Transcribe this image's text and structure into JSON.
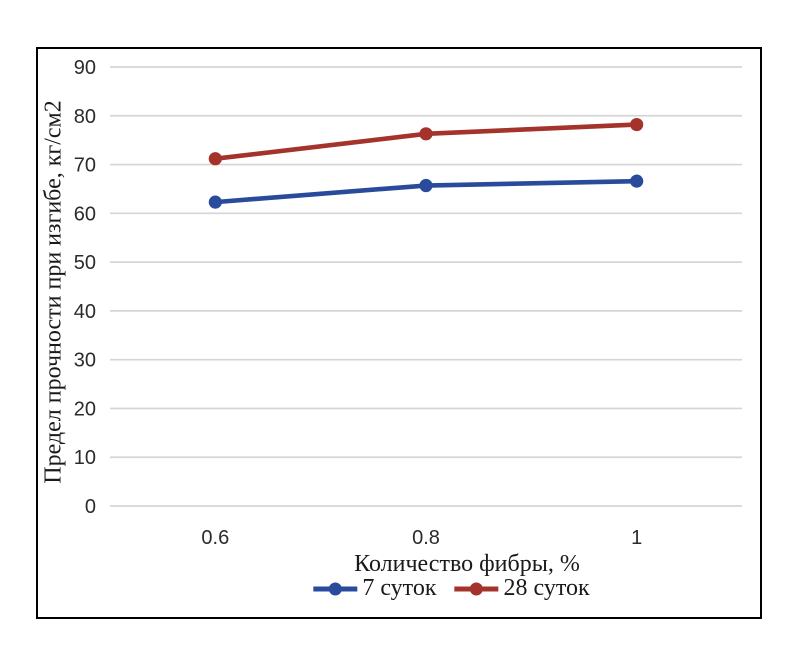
{
  "figure": {
    "background": "#ffffff",
    "border_color": "#000000"
  },
  "chart_data": {
    "type": "line",
    "title": "",
    "xlabel": "Количество фибры, %",
    "ylabel": "Предел прочности при изгибе, кг/см2",
    "categories": [
      "0.6",
      "0.8",
      "1"
    ],
    "x_values": [
      0.6,
      0.8,
      1
    ],
    "ylim": [
      0,
      90
    ],
    "y_ticks": [
      0,
      10,
      20,
      30,
      40,
      50,
      60,
      70,
      80,
      90
    ],
    "grid": "horizontal-only",
    "legend_position": "bottom",
    "marker_style": "filled-circle",
    "series": [
      {
        "name": "7 суток",
        "color": "#2A4B9C",
        "values": [
          62.3,
          65.7,
          66.6
        ]
      },
      {
        "name": "28 суток",
        "color": "#A4332B",
        "values": [
          71.2,
          76.3,
          78.2
        ]
      }
    ],
    "colors": {
      "gridline": "#D5D5D5",
      "tick_label": "#2b2b2b",
      "axis_title": "#1a1a1a"
    }
  }
}
